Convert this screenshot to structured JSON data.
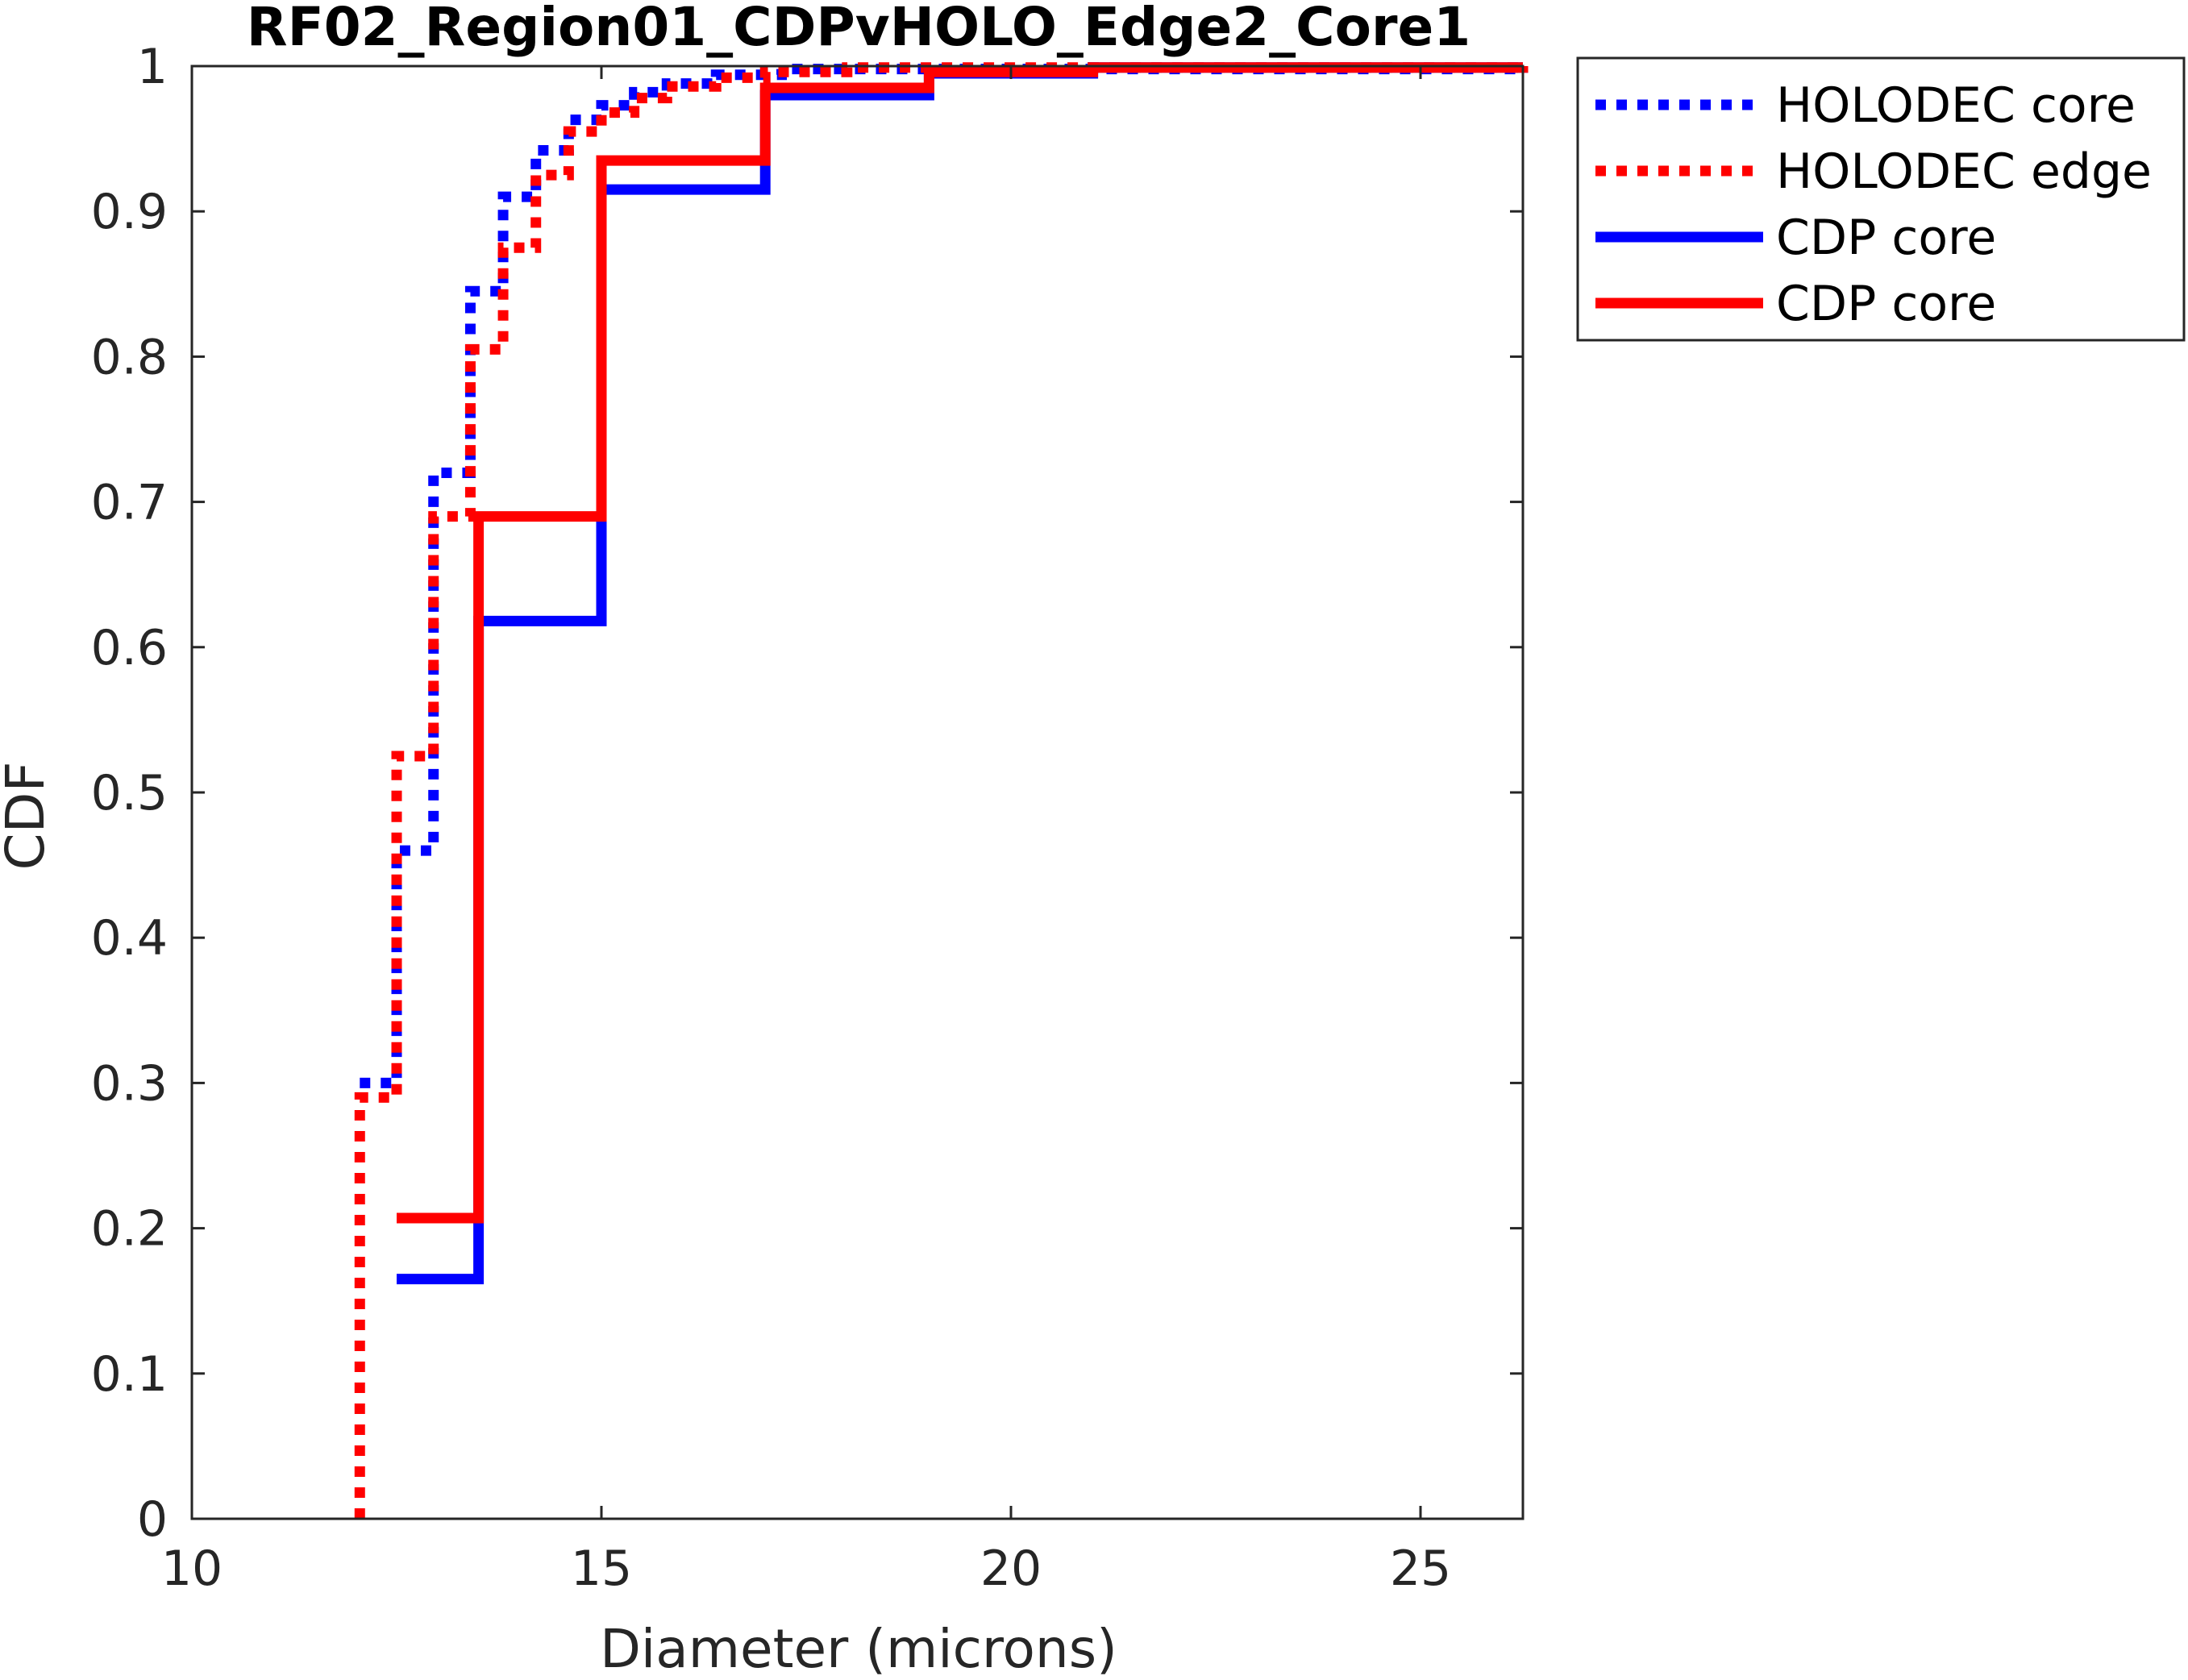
{
  "chart_data": {
    "type": "line",
    "title": "RF02_Region01_CDPvHOLO_Edge2_Core1",
    "xlabel": "Diameter (microns)",
    "ylabel": "CDF",
    "xlim": [
      10,
      26.25
    ],
    "ylim": [
      0,
      1
    ],
    "xticks": [
      10,
      15,
      20,
      25
    ],
    "yticks": [
      0,
      0.1,
      0.2,
      0.3,
      0.4,
      0.5,
      0.6,
      0.7,
      0.8,
      0.9,
      1
    ],
    "xtick_labels": [
      "10",
      "15",
      "20",
      "25"
    ],
    "ytick_labels": [
      "0",
      "0.1",
      "0.2",
      "0.3",
      "0.4",
      "0.5",
      "0.6",
      "0.7",
      "0.8",
      "0.9",
      "1"
    ],
    "grid": false,
    "legend_position": "outside-top-right",
    "series": [
      {
        "name": "HOLODEC core",
        "style": "dotted",
        "color": "#0000ff",
        "step": true,
        "x": [
          12.05,
          12.5,
          12.95,
          13.4,
          13.8,
          14.2,
          14.6,
          15.0,
          15.4,
          15.8,
          16.4,
          17.2,
          26.25
        ],
        "y": [
          0.3,
          0.46,
          0.72,
          0.845,
          0.91,
          0.942,
          0.963,
          0.973,
          0.982,
          0.988,
          0.994,
          0.998,
          1.0
        ]
      },
      {
        "name": "HOLODEC edge",
        "style": "dotted",
        "color": "#ff0000",
        "step": true,
        "x": [
          12.05,
          12.05,
          12.5,
          12.95,
          13.4,
          13.8,
          14.2,
          14.6,
          15.0,
          15.4,
          15.8,
          16.4,
          17.0,
          18.0,
          26.25
        ],
        "y": [
          0.0,
          0.29,
          0.525,
          0.69,
          0.805,
          0.875,
          0.925,
          0.955,
          0.968,
          0.978,
          0.986,
          0.992,
          0.996,
          0.999,
          1.0
        ]
      },
      {
        "name": "CDP core",
        "style": "solid",
        "color": "#0000ff",
        "step": true,
        "x": [
          12.5,
          13.5,
          15.0,
          17.0,
          19.0,
          21.0,
          26.25
        ],
        "y": [
          0.165,
          0.618,
          0.915,
          0.98,
          0.995,
          0.999,
          1.0
        ]
      },
      {
        "name": "CDP core",
        "style": "solid",
        "color": "#ff0000",
        "step": true,
        "x": [
          12.5,
          13.5,
          15.0,
          17.0,
          19.0,
          21.0,
          26.25
        ],
        "y": [
          0.207,
          0.69,
          0.935,
          0.985,
          0.996,
          0.999,
          1.0
        ]
      }
    ]
  }
}
